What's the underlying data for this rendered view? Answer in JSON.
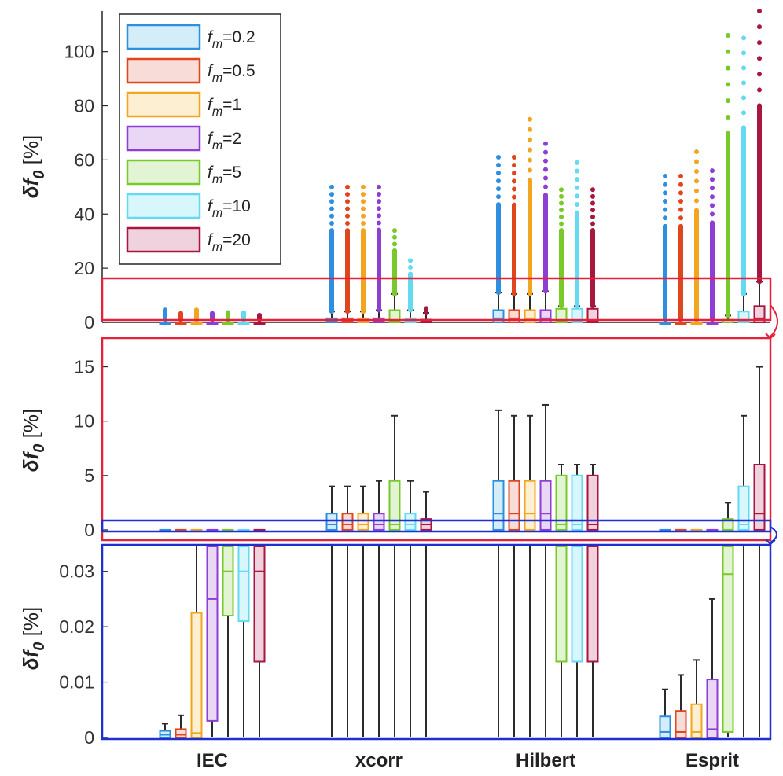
{
  "chart_data": [
    {
      "type": "box",
      "panel": "full range",
      "ylabel": {
        "symbol": "δf",
        "subscript": "0",
        "unit": " [%]"
      },
      "ylim": [
        0,
        115
      ],
      "yticks": [
        0,
        20,
        40,
        60,
        80,
        100
      ],
      "categories": [
        "IEC",
        "xcorr",
        "Hilbert",
        "Esprit"
      ],
      "legend": {
        "position": "top-left",
        "entries": [
          {
            "prefix": "f",
            "sub": "m",
            "label": "=0.2",
            "color": "#2e8fe0",
            "fill": "#d3edf9"
          },
          {
            "prefix": "f",
            "sub": "m",
            "label": "=0.5",
            "color": "#e0461e",
            "fill": "#f8dcd7"
          },
          {
            "prefix": "f",
            "sub": "m",
            "label": "=1",
            "color": "#f2a51f",
            "fill": "#fdefd2"
          },
          {
            "prefix": "f",
            "sub": "m",
            "label": "=2",
            "color": "#8e3ed3",
            "fill": "#ead6f5"
          },
          {
            "prefix": "f",
            "sub": "m",
            "label": "=5",
            "color": "#78c92a",
            "fill": "#e2f4d3"
          },
          {
            "prefix": "f",
            "sub": "m",
            "label": "=10",
            "color": "#64d9f2",
            "fill": "#d8f7fd"
          },
          {
            "prefix": "f",
            "sub": "m",
            "label": "=20",
            "color": "#a8173f",
            "fill": "#efd2de"
          }
        ]
      },
      "series": [
        {
          "name": "IEC",
          "boxes": [
            {
              "q1": 0,
              "med": 0,
              "q3": 0,
              "whisker_low": 0,
              "whisker_high": 0,
              "outliers_to": 6.5
            },
            {
              "q1": 0,
              "med": 0,
              "q3": 0,
              "whisker_low": 0,
              "whisker_high": 0,
              "outliers_to": 4.5
            },
            {
              "q1": 0,
              "med": 0,
              "q3": 0,
              "whisker_low": 0,
              "whisker_high": 0,
              "outliers_to": 6.5
            },
            {
              "q1": 0,
              "med": 0,
              "q3": 0,
              "whisker_low": 0,
              "whisker_high": 0,
              "outliers_to": 4.5
            },
            {
              "q1": 0,
              "med": 0,
              "q3": 0,
              "whisker_low": 0,
              "whisker_high": 0,
              "outliers_to": 5
            },
            {
              "q1": 0,
              "med": 0,
              "q3": 0,
              "whisker_low": 0,
              "whisker_high": 0,
              "outliers_to": 5
            },
            {
              "q1": 0,
              "med": 0,
              "q3": 0,
              "whisker_low": 0,
              "whisker_high": 0,
              "outliers_to": 3.5
            }
          ]
        },
        {
          "name": "xcorr",
          "boxes": [
            {
              "q1": 0,
              "med": 0.5,
              "q3": 1.5,
              "whisker_low": 0,
              "whisker_high": 4,
              "outliers_to": 50
            },
            {
              "q1": 0,
              "med": 0.5,
              "q3": 1.5,
              "whisker_low": 0,
              "whisker_high": 4,
              "outliers_to": 50
            },
            {
              "q1": 0,
              "med": 0.5,
              "q3": 1.5,
              "whisker_low": 0,
              "whisker_high": 4,
              "outliers_to": 50
            },
            {
              "q1": 0,
              "med": 0.5,
              "q3": 1.5,
              "whisker_low": 0,
              "whisker_high": 4.5,
              "outliers_to": 50
            },
            {
              "q1": 0,
              "med": 0.5,
              "q3": 4.5,
              "whisker_low": 0,
              "whisker_high": 10.5,
              "outliers_to": 35
            },
            {
              "q1": 0,
              "med": 0.5,
              "q3": 1.5,
              "whisker_low": 0,
              "whisker_high": 4.5,
              "outliers_to": 25
            },
            {
              "q1": 0,
              "med": 0.5,
              "q3": 1,
              "whisker_low": 0,
              "whisker_high": 3.5,
              "outliers_to": 6
            }
          ]
        },
        {
          "name": "Hilbert",
          "boxes": [
            {
              "q1": 0,
              "med": 1.5,
              "q3": 4.5,
              "whisker_low": 0,
              "whisker_high": 11,
              "outliers_to": 61
            },
            {
              "q1": 0,
              "med": 1.5,
              "q3": 4.5,
              "whisker_low": 0,
              "whisker_high": 10.5,
              "outliers_to": 61
            },
            {
              "q1": 0,
              "med": 1.5,
              "q3": 4.5,
              "whisker_low": 0,
              "whisker_high": 10.5,
              "outliers_to": 75
            },
            {
              "q1": 0,
              "med": 1.5,
              "q3": 4.5,
              "whisker_low": 0,
              "whisker_high": 11.5,
              "outliers_to": 66
            },
            {
              "q1": 0,
              "med": 0.5,
              "q3": 5,
              "whisker_low": 0,
              "whisker_high": 6,
              "outliers_to": 49
            },
            {
              "q1": 0,
              "med": 0.5,
              "q3": 5,
              "whisker_low": 0,
              "whisker_high": 6,
              "outliers_to": 59
            },
            {
              "q1": 0,
              "med": 0.5,
              "q3": 5,
              "whisker_low": 0,
              "whisker_high": 6,
              "outliers_to": 49
            }
          ]
        },
        {
          "name": "Esprit",
          "boxes": [
            {
              "q1": 0,
              "med": 0,
              "q3": 0,
              "whisker_low": 0,
              "whisker_high": 0,
              "outliers_to": 54
            },
            {
              "q1": 0,
              "med": 0,
              "q3": 0,
              "whisker_low": 0,
              "whisker_high": 0,
              "outliers_to": 54
            },
            {
              "q1": 0,
              "med": 0,
              "q3": 0,
              "whisker_low": 0,
              "whisker_high": 0,
              "outliers_to": 63
            },
            {
              "q1": 0,
              "med": 0,
              "q3": 0,
              "whisker_low": 0,
              "whisker_high": 0,
              "outliers_to": 56
            },
            {
              "q1": 0,
              "med": 0,
              "q3": 1,
              "whisker_low": 0,
              "whisker_high": 2.5,
              "outliers_to": 106
            },
            {
              "q1": 0,
              "med": 0.5,
              "q3": 4,
              "whisker_low": 0,
              "whisker_high": 10.5,
              "outliers_to": 105
            },
            {
              "q1": 0,
              "med": 1.5,
              "q3": 6,
              "whisker_low": 0,
              "whisker_high": 15,
              "outliers_to": 115
            }
          ]
        }
      ]
    },
    {
      "type": "box",
      "panel": "zoom 0-17",
      "ylabel": {
        "symbol": "δf",
        "subscript": "0",
        "unit": " [%]"
      },
      "ylim": [
        -0.8,
        17.5
      ],
      "yticks": [
        0,
        5,
        10,
        15
      ],
      "series_ref": "same boxes as panel 1"
    },
    {
      "type": "box",
      "panel": "zoom 0-0.035",
      "ylabel": {
        "symbol": "δf",
        "subscript": "0",
        "unit": " [%]"
      },
      "ylim": [
        0,
        0.0345
      ],
      "yticks": [
        "0",
        "0.01",
        "0.02",
        "0.03"
      ],
      "fine_boxes": {
        "IEC": [
          {
            "q1": 0,
            "med": 0.0005,
            "q3": 0.0012,
            "whisker_high": 0.0025
          },
          {
            "q1": 0,
            "med": 0.0005,
            "q3": 0.0015,
            "whisker_high": 0.004
          },
          {
            "q1": 0,
            "med": 0.0008,
            "q3": 0.0225,
            "whisker_high": 0.04
          },
          {
            "q1": 0.003,
            "med": 0.025,
            "q3": 0.04,
            "whisker_high": 0.04
          },
          {
            "q1": 0.022,
            "med": 0.03,
            "q3": 0.04,
            "whisker_high": 0.04
          },
          {
            "q1": 0.021,
            "med": 0.03,
            "q3": 0.04,
            "whisker_high": 0.04
          },
          {
            "q1": 0.0137,
            "med": 0.03,
            "q3": 0.04,
            "whisker_high": 0.04
          }
        ],
        "xcorr": [],
        "Hilbert": [
          {
            "q1": 0.0137,
            "med": 0.04,
            "q3": 0.04,
            "box_from": 4
          },
          {
            "q1": 0.0137,
            "med": 0.04,
            "q3": 0.04,
            "box_from": 5
          },
          {
            "q1": 0.0137,
            "med": 0.04,
            "q3": 0.04,
            "box_from": 6
          }
        ],
        "Esprit": [
          {
            "q1": 0,
            "med": 0.001,
            "q3": 0.0038,
            "whisker_high": 0.0087
          },
          {
            "q1": 0,
            "med": 0.001,
            "q3": 0.0048,
            "whisker_high": 0.0113
          },
          {
            "q1": 0,
            "med": 0.001,
            "q3": 0.006,
            "whisker_high": 0.014
          },
          {
            "q1": 0,
            "med": 0.0015,
            "q3": 0.0105,
            "whisker_high": 0.025
          },
          {
            "q1": 0.001,
            "med": 0.0295,
            "q3": 0.04,
            "whisker_high": 0.04
          },
          {
            "q1": 0,
            "med": 0,
            "q3": 0,
            "whisker_high": 0.04
          },
          {
            "q1": 0,
            "med": 0,
            "q3": 0,
            "whisker_high": 0.04
          }
        ]
      }
    }
  ],
  "highlight_colors": {
    "zoom1": "#e5203a",
    "zoom2": "#1f2fd0"
  }
}
